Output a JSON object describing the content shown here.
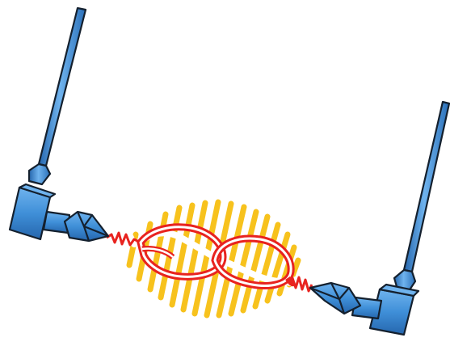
{
  "illustration": {
    "description_free": true,
    "colors": {
      "probe_fill": "#3f8fd8",
      "probe_light": "#6fb3ee",
      "probe_dark": "#2566ad",
      "outline": "#14202e",
      "field_stripes": "#f7c21d",
      "molecule_red": "#e8231f",
      "molecule_white": "#ffffff",
      "background": "#ffffff"
    },
    "elements": [
      {
        "name": "left-probe",
        "icon": "probe-icon"
      },
      {
        "name": "right-probe",
        "icon": "probe-icon"
      },
      {
        "name": "light-field",
        "icon": "yellow-stripes"
      },
      {
        "name": "figure-eight-molecule",
        "icon": "figure-eight-loop-icon"
      }
    ]
  }
}
